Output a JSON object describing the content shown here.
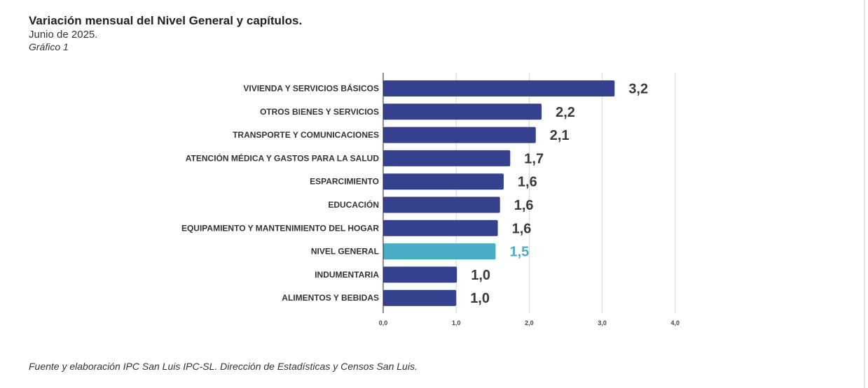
{
  "header": {
    "title": "Variación mensual del Nivel General y capítulos.",
    "subtitle": "Junio de 2025.",
    "figure_label": "Gráfico 1"
  },
  "footer": {
    "source": "Fuente y elaboración IPC San Luis IPC-SL. Dirección de Estadísticas y Censos San Luis."
  },
  "colors": {
    "bar": "#35408f",
    "highlight": "#4bacc6",
    "value_text": "#3a3a3a",
    "grid": "#d4d4d4"
  },
  "chart_data": {
    "type": "bar",
    "orientation": "horizontal",
    "categories": [
      "VIVIENDA Y SERVICIOS BÁSICOS",
      "OTROS BIENES Y SERVICIOS",
      "TRANSPORTE Y COMUNICACIONES",
      "ATENCIÓN MÉDICA Y GASTOS PARA LA SALUD",
      "ESPARCIMIENTO",
      "EDUCACIÓN",
      "EQUIPAMIENTO Y MANTENIMIENTO DEL HOGAR",
      "NIVEL GENERAL",
      "INDUMENTARIA",
      "ALIMENTOS Y BEBIDAS"
    ],
    "values": [
      3.17,
      2.17,
      2.09,
      1.74,
      1.65,
      1.6,
      1.57,
      1.54,
      1.01,
      1.0
    ],
    "value_labels": [
      "3,2",
      "2,2",
      "2,1",
      "1,7",
      "1,6",
      "1,6",
      "1,6",
      "1,5",
      "1,0",
      "1,0"
    ],
    "highlight_category": "NIVEL GENERAL",
    "xlim": [
      0,
      4
    ],
    "xticks": [
      0,
      1,
      2,
      3,
      4
    ],
    "xtick_labels": [
      "0,0",
      "1,0",
      "2,0",
      "3,0",
      "4,0"
    ],
    "grid": true,
    "legend": "none"
  }
}
